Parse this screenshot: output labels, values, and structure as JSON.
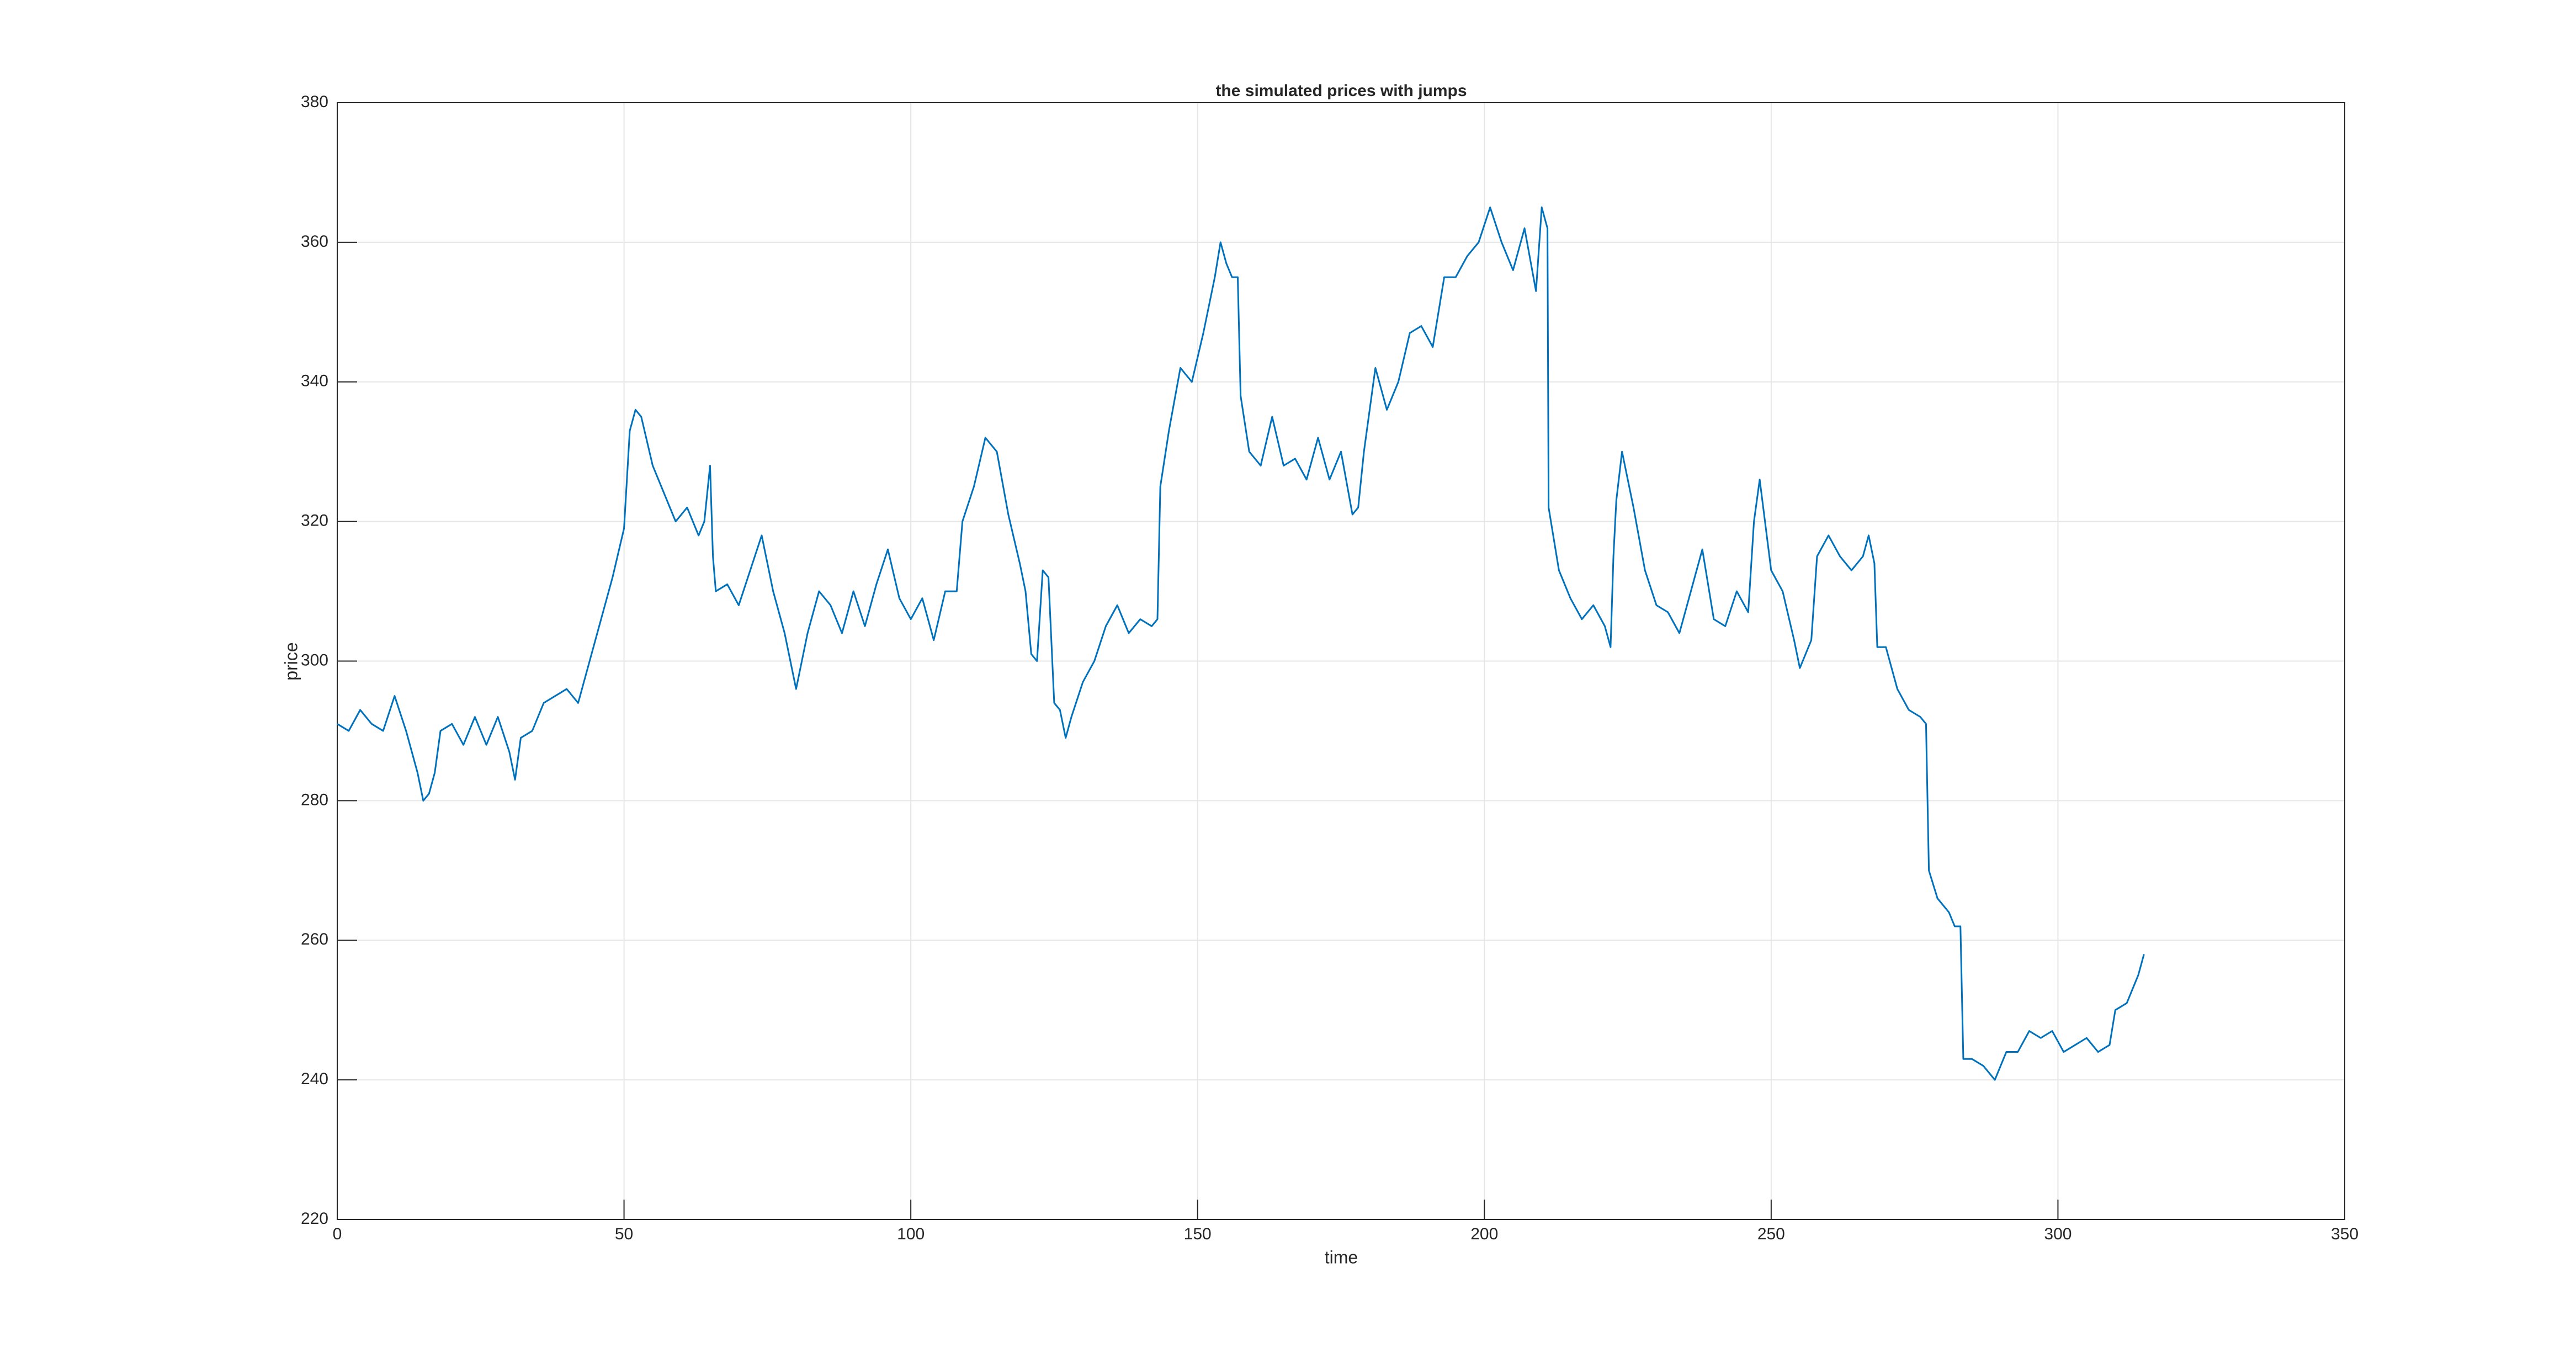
{
  "chart_data": {
    "type": "line",
    "title": "the simulated prices with jumps",
    "x_label": "time",
    "y_label": "price",
    "xlim": [
      0,
      350
    ],
    "xticks": [
      0,
      50,
      100,
      150,
      200,
      250,
      300,
      350
    ],
    "ylim": [
      220,
      380
    ],
    "yticks": [
      220,
      240,
      260,
      280,
      300,
      320,
      340,
      360,
      380
    ],
    "grid": true,
    "series": [
      {
        "color": "#0072bd",
        "x": [
          0,
          2,
          4,
          6,
          8,
          10,
          12,
          14,
          15,
          16,
          17,
          18,
          20,
          22,
          24,
          26,
          28,
          30,
          31,
          32,
          34,
          36,
          38,
          40,
          42,
          44,
          46,
          48,
          50,
          51,
          52,
          53,
          55,
          57,
          59,
          61,
          63,
          64,
          65,
          65.5,
          66,
          68,
          70,
          72,
          74,
          76,
          78,
          80,
          82,
          84,
          86,
          88,
          90,
          92,
          94,
          96,
          98,
          100,
          102,
          104,
          106,
          108,
          109,
          111,
          113,
          115,
          117,
          119,
          120,
          121,
          122,
          123,
          124,
          125,
          126,
          127,
          128,
          130,
          132,
          134,
          136,
          138,
          140,
          142,
          143,
          143.5,
          145,
          147,
          149,
          151,
          153,
          154,
          155,
          156,
          157,
          157.5,
          159,
          161,
          163,
          165,
          167,
          169,
          171,
          173,
          175,
          177,
          178,
          179,
          181,
          183,
          185,
          187,
          189,
          191,
          193,
          195,
          197,
          199,
          201,
          203,
          205,
          207,
          209,
          210,
          211,
          211.2,
          213,
          215,
          217,
          219,
          221,
          222,
          222.5,
          223,
          224,
          226,
          228,
          230,
          232,
          234,
          236,
          238,
          240,
          242,
          244,
          246,
          247,
          248,
          250,
          252,
          254,
          255,
          257,
          258,
          260,
          262,
          264,
          266,
          267,
          268,
          268.5,
          270,
          272,
          274,
          276,
          277,
          277.5,
          279,
          281,
          282,
          283,
          283.5,
          285,
          287,
          289,
          291,
          293,
          295,
          297,
          299,
          301,
          303,
          305,
          307,
          309,
          310,
          312,
          314,
          315
        ],
        "values": [
          291,
          290,
          293,
          291,
          290,
          295,
          290,
          284,
          280,
          281,
          284,
          290,
          291,
          288,
          292,
          288,
          292,
          287,
          283,
          289,
          290,
          294,
          295,
          296,
          294,
          300,
          306,
          312,
          319,
          333,
          336,
          335,
          328,
          324,
          320,
          322,
          318,
          320,
          328,
          315,
          310,
          311,
          308,
          313,
          318,
          310,
          304,
          296,
          304,
          310,
          308,
          304,
          310,
          305,
          311,
          316,
          309,
          306,
          309,
          303,
          310,
          310,
          320,
          325,
          332,
          330,
          321,
          314,
          310,
          301,
          300,
          313,
          312,
          294,
          293,
          289,
          292,
          297,
          300,
          305,
          308,
          304,
          306,
          305,
          306,
          325,
          333,
          342,
          340,
          347,
          355,
          360,
          357,
          355,
          355,
          338,
          330,
          328,
          335,
          328,
          329,
          326,
          332,
          326,
          330,
          321,
          322,
          330,
          342,
          336,
          340,
          347,
          348,
          345,
          355,
          355,
          358,
          360,
          365,
          360,
          356,
          362,
          353,
          365,
          362,
          322,
          313,
          309,
          306,
          308,
          305,
          302,
          315,
          323,
          330,
          322,
          313,
          308,
          307,
          304,
          310,
          316,
          306,
          305,
          310,
          307,
          320,
          326,
          313,
          310,
          303,
          299,
          303,
          315,
          318,
          315,
          313,
          315,
          318,
          314,
          302,
          302,
          296,
          293,
          292,
          291,
          270,
          266,
          264,
          262,
          262,
          243,
          243,
          242,
          240,
          244,
          244,
          247,
          246,
          247,
          244,
          245,
          246,
          244,
          245,
          250,
          251,
          255,
          258
        ]
      }
    ]
  }
}
